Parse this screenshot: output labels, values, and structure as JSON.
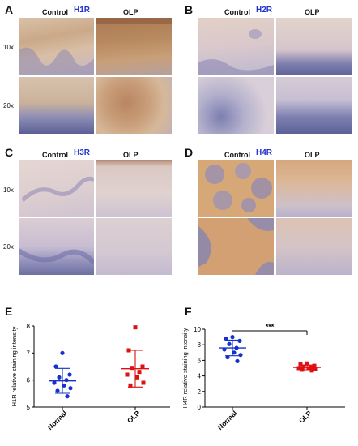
{
  "panels": {
    "A": {
      "letter": "A",
      "control": "Control",
      "receptor": "H1R",
      "olp": "OLP",
      "mag_top": "10x",
      "mag_bottom": "20x"
    },
    "B": {
      "letter": "B",
      "control": "Control",
      "receptor": "H2R",
      "olp": "OLP"
    },
    "C": {
      "letter": "C",
      "control": "Control",
      "receptor": "H3R",
      "olp": "OLP",
      "mag_top": "10x",
      "mag_bottom": "20x"
    },
    "D": {
      "letter": "D",
      "control": "Control",
      "receptor": "H4R",
      "olp": "OLP"
    },
    "E": {
      "letter": "E"
    },
    "F": {
      "letter": "F"
    }
  },
  "colors": {
    "normal": "#1530cc",
    "olp": "#dd1111",
    "receptor_label": "#2233cc"
  },
  "chart_data": [
    {
      "type": "scatter",
      "panel": "E",
      "title": "",
      "ylabel": "H1R relative staining intensity",
      "xlabel": "",
      "categories": [
        "Normal",
        "OLP"
      ],
      "ylim": [
        5,
        8
      ],
      "yticks": [
        "5",
        "6",
        "7",
        "8"
      ],
      "series": [
        {
          "name": "Normal",
          "values": [
            7.0,
            6.5,
            6.2,
            6.1,
            6.0,
            5.9,
            5.8,
            5.7,
            5.6,
            5.4
          ],
          "mean": 5.97,
          "sd": 0.46
        },
        {
          "name": "OLP",
          "values": [
            7.95,
            7.1,
            6.5,
            6.45,
            6.3,
            6.2,
            6.1,
            5.9,
            5.8
          ],
          "mean": 6.42,
          "sd": 0.68
        }
      ]
    },
    {
      "type": "scatter",
      "panel": "F",
      "title": "",
      "ylabel": "H4R relative staining intensity",
      "xlabel": "",
      "categories": [
        "Normal",
        "OLP"
      ],
      "ylim": [
        0,
        10
      ],
      "yticks": [
        "0",
        "2",
        "4",
        "6",
        "8",
        "10"
      ],
      "significance": "***",
      "series": [
        {
          "name": "Normal",
          "values": [
            9.0,
            8.8,
            8.5,
            8.1,
            7.6,
            7.4,
            7.0,
            6.7,
            6.4,
            5.9
          ],
          "mean": 7.6,
          "sd": 1.0
        },
        {
          "name": "OLP",
          "values": [
            5.6,
            5.5,
            5.3,
            5.2,
            5.1,
            5.0,
            5.0,
            4.9,
            4.8,
            4.7
          ],
          "mean": 5.1,
          "sd": 0.3
        }
      ]
    }
  ]
}
